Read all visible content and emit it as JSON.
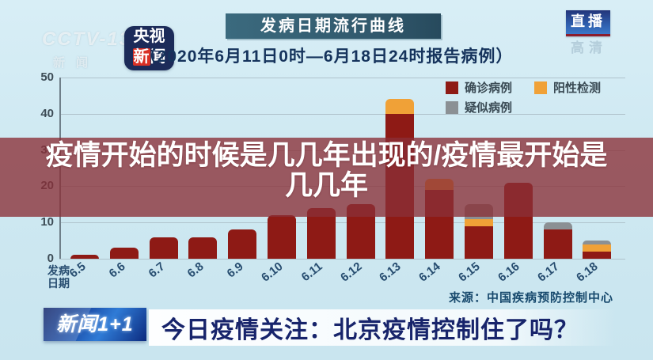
{
  "header": {
    "watermark_line1": "CCTV-13",
    "watermark_line2": "新闻",
    "app_logo": {
      "line1": "央视",
      "line2_red": "新",
      "line2_rest": "闻"
    },
    "title": "发病日期流行曲线",
    "subtitle": "（2020年6月11日0时—6月18日24时报告病例）",
    "live_badge": "直播",
    "live_ghost": "高清"
  },
  "chart_data": {
    "type": "bar",
    "stacked": true,
    "title": "发病日期流行曲线",
    "subtitle": "（2020年6月11日0时—6月18日24时报告病例）",
    "categories": [
      "6.5",
      "6.6",
      "6.7",
      "6.8",
      "6.9",
      "6.10",
      "6.11",
      "6.12",
      "6.13",
      "6.14",
      "6.15",
      "6.16",
      "6.17",
      "6.18"
    ],
    "series": [
      {
        "name": "确诊病例",
        "color": "#8e1a15",
        "values": [
          1,
          3,
          6,
          6,
          8,
          12,
          14,
          15,
          40,
          19,
          9,
          21,
          8,
          2
        ]
      },
      {
        "name": "阳性检测",
        "color": "#f0a137",
        "values": [
          0,
          0,
          0,
          0,
          0,
          0,
          0,
          0,
          4,
          3,
          2,
          0,
          0,
          2
        ]
      },
      {
        "name": "疑似病例",
        "color": "#8b9094",
        "values": [
          0,
          0,
          0,
          0,
          0,
          0,
          0,
          0,
          0,
          0,
          4,
          0,
          2,
          1
        ]
      }
    ],
    "ylim": [
      0,
      50
    ],
    "yticks": [
      0,
      10,
      20,
      30,
      40,
      50
    ],
    "xlabel": "发病日期",
    "grid": true,
    "legend_position": "top-right",
    "source": "来源：中国疾病预防控制中心"
  },
  "overlay": {
    "line1": "疫情开始的时候是几几年出现的/疫情最开始是",
    "line2": "几几年"
  },
  "footer": {
    "program_logo": "新闻1+1",
    "headline": "今日疫情关注：北京疫情控制住了吗？"
  }
}
